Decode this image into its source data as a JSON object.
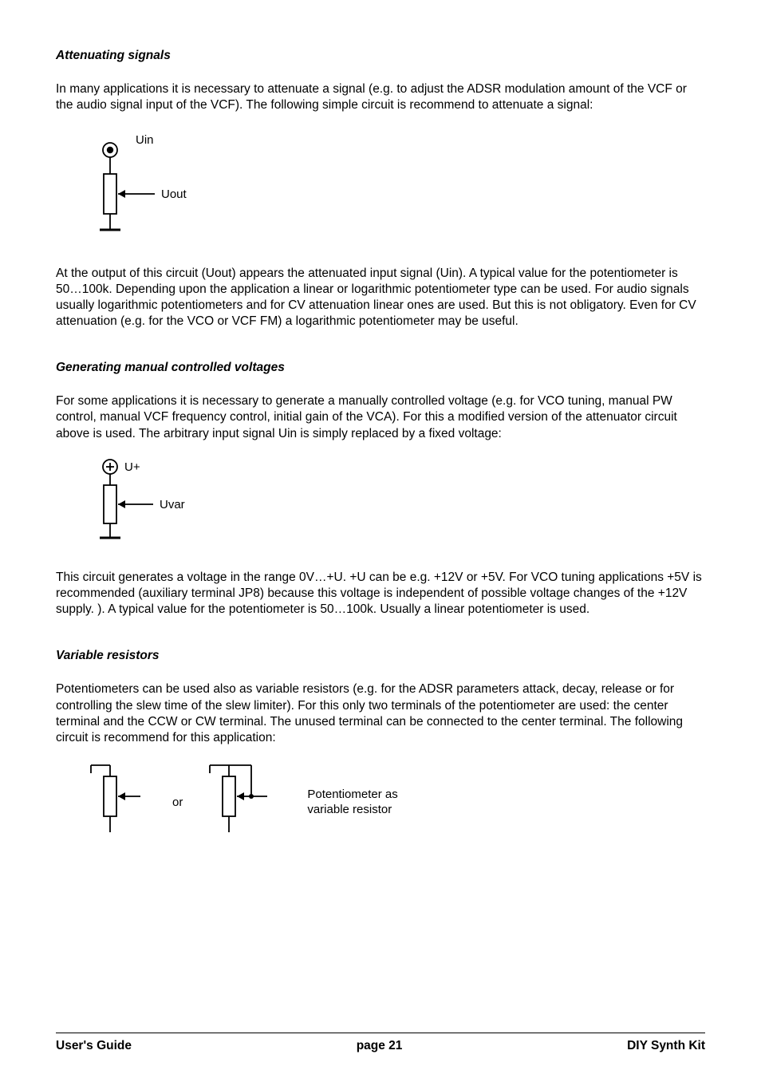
{
  "sections": {
    "attenuating": {
      "title": "Attenuating signals",
      "p1": "In many applications it is necessary to attenuate a signal (e.g. to adjust the ADSR modulation amount of the VCF or the audio signal input of the VCF). The following simple circuit is recommend to attenuate a signal:",
      "diagram": {
        "label_in": "Uin",
        "label_out": "Uout"
      },
      "p2": "At the output of this circuit (Uout) appears the attenuated input signal (Uin). A typical value for the potentiometer is 50…100k. Depending upon the application a linear or logarithmic potentiometer type can be used. For audio signals usually logarithmic potentiometers and for CV attenuation linear ones are used. But this is not obligatory. Even for CV attenuation (e.g. for the VCO or VCF FM) a logarithmic potentiometer may be useful."
    },
    "generating": {
      "title": "Generating manual controlled voltages",
      "p1": "For some applications it is necessary to generate a manually controlled voltage (e.g. for VCO tuning, manual PW control, manual VCF frequency control, initial gain of the VCA). For this a modified version of the attenuator circuit above is used. The arbitrary input signal Uin is simply replaced by a fixed voltage:",
      "diagram": {
        "label_supply": "U+",
        "label_out": "Uvar"
      },
      "p2": "This circuit generates a voltage in the range 0V…+U. +U can be e.g. +12V or +5V. For VCO tuning applications +5V is recommended (auxiliary terminal JP8) because this voltage is independent of possible voltage changes of the +12V supply. ). A typical value for the potentiometer is 50…100k. Usually a linear potentiometer is used."
    },
    "variable": {
      "title": "Variable resistors",
      "p1": "Potentiometers can be used also as variable resistors (e.g. for the ADSR parameters attack, decay, release or for controlling the slew time of the slew limiter). For this only two terminals of the potentiometer are used: the center terminal and the CCW or CW terminal. The unused terminal can be connected to the center terminal. The following circuit is recommend for this application:",
      "or_label": "or",
      "after_label": "Potentiometer as\nvariable resistor"
    }
  },
  "footer": {
    "left": "User's Guide",
    "center": "page 21",
    "right": "DIY Synth Kit"
  },
  "style": {
    "stroke": "#000000",
    "stroke_width": 1.8,
    "heavy_stroke": 3
  }
}
